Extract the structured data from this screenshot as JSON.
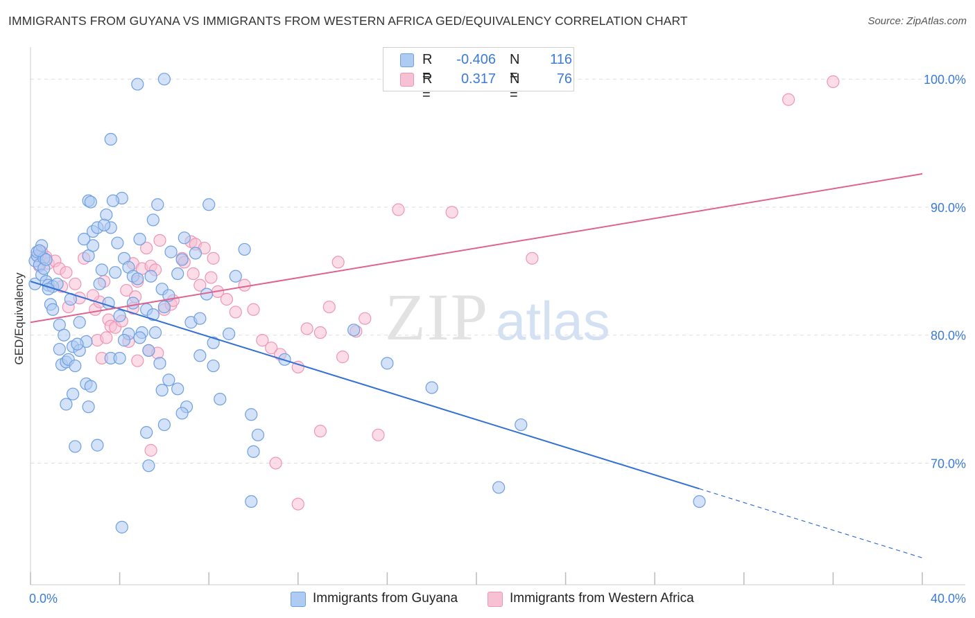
{
  "title": "IMMIGRANTS FROM GUYANA VS IMMIGRANTS FROM WESTERN AFRICA GED/EQUIVALENCY CORRELATION CHART",
  "source": "Source: ZipAtlas.com",
  "watermark": {
    "zip": "ZIP",
    "atlas": "atlas"
  },
  "colors": {
    "blue_fill": "#aecbf3",
    "blue_stroke": "#6e9fe0",
    "blue_line": "#3370d4",
    "pink_fill": "#f7c0d3",
    "pink_stroke": "#ee95b5",
    "pink_line": "#e0628f",
    "tick_label": "#3b7ad6",
    "grid": "#dddddd"
  },
  "legend": {
    "rows": [
      {
        "r_label": "R =",
        "r_value": "-0.406",
        "n_label": "N =",
        "n_value": "116",
        "color": "#aecbf3"
      },
      {
        "r_label": "R =",
        "r_value": "0.317",
        "n_label": "N =",
        "n_value": "76",
        "color": "#f7c0d3"
      }
    ]
  },
  "bottom_legend": [
    {
      "label": "Immigrants from Guyana",
      "color": "#aecbf3"
    },
    {
      "label": "Immigrants from Western Africa",
      "color": "#f7c0d3"
    }
  ],
  "chart_data": {
    "type": "scatter",
    "title": "IMMIGRANTS FROM GUYANA VS IMMIGRANTS FROM WESTERN AFRICA GED/EQUIVALENCY CORRELATION CHART",
    "xlabel": "",
    "ylabel": "GED/Equivalency",
    "xlim": [
      0,
      40
    ],
    "ylim": [
      60.5,
      102.5
    ],
    "x_tick_labels": [
      "0.0%",
      "40.0%"
    ],
    "y_ticks": [
      70,
      80,
      90,
      100
    ],
    "y_tick_labels": [
      "70.0%",
      "80.0%",
      "90.0%",
      "100.0%"
    ],
    "grid": "horizontal dashed",
    "legend_position": "top-center",
    "series": [
      {
        "name": "Immigrants from Guyana",
        "trend": {
          "x": [
            0,
            30
          ],
          "y": [
            84.2,
            68.0
          ],
          "dashed_extension_to": [
            40,
            62.6
          ]
        },
        "points": [
          [
            0.2,
            85.8
          ],
          [
            0.3,
            86.2
          ],
          [
            0.2,
            84.0
          ],
          [
            0.4,
            85.5
          ],
          [
            0.5,
            84.7
          ],
          [
            0.3,
            86.5
          ],
          [
            0.5,
            87.0
          ],
          [
            0.6,
            86.0
          ],
          [
            0.7,
            84.2
          ],
          [
            0.8,
            83.9
          ],
          [
            0.9,
            82.4
          ],
          [
            0.6,
            85.2
          ],
          [
            0.4,
            86.6
          ],
          [
            0.7,
            85.9
          ],
          [
            1.0,
            83.8
          ],
          [
            1.2,
            84.0
          ],
          [
            1.0,
            82.0
          ],
          [
            1.3,
            80.8
          ],
          [
            1.5,
            80.0
          ],
          [
            1.8,
            82.8
          ],
          [
            2.2,
            81.0
          ],
          [
            2.5,
            79.5
          ],
          [
            1.3,
            78.9
          ],
          [
            1.4,
            77.7
          ],
          [
            1.6,
            77.9
          ],
          [
            1.7,
            78.1
          ],
          [
            2.0,
            77.6
          ],
          [
            1.9,
            79.1
          ],
          [
            2.2,
            78.8
          ],
          [
            2.1,
            79.3
          ],
          [
            2.5,
            76.2
          ],
          [
            2.7,
            76.0
          ],
          [
            1.6,
            74.6
          ],
          [
            1.9,
            75.4
          ],
          [
            2.6,
            74.4
          ],
          [
            2.0,
            71.3
          ],
          [
            3.0,
            71.4
          ],
          [
            4.1,
            65.0
          ],
          [
            3.5,
            82.5
          ],
          [
            4.0,
            81.5
          ],
          [
            4.4,
            80.1
          ],
          [
            4.2,
            79.6
          ],
          [
            3.6,
            78.2
          ],
          [
            4.0,
            78.2
          ],
          [
            3.1,
            84.0
          ],
          [
            3.2,
            85.1
          ],
          [
            3.8,
            84.9
          ],
          [
            2.6,
            86.2
          ],
          [
            2.8,
            87.0
          ],
          [
            2.4,
            87.5
          ],
          [
            2.8,
            88.1
          ],
          [
            3.0,
            88.4
          ],
          [
            2.6,
            90.5
          ],
          [
            2.7,
            90.4
          ],
          [
            3.4,
            89.4
          ],
          [
            3.6,
            88.4
          ],
          [
            3.9,
            87.2
          ],
          [
            4.2,
            86.0
          ],
          [
            4.4,
            85.3
          ],
          [
            4.6,
            84.6
          ],
          [
            4.8,
            84.4
          ],
          [
            4.6,
            82.5
          ],
          [
            5.2,
            82.0
          ],
          [
            5.5,
            81.6
          ],
          [
            5.0,
            80.2
          ],
          [
            4.9,
            79.8
          ],
          [
            5.3,
            78.8
          ],
          [
            4.1,
            90.7
          ],
          [
            3.7,
            90.5
          ],
          [
            3.3,
            88.6
          ],
          [
            5.5,
            89.0
          ],
          [
            4.9,
            87.5
          ],
          [
            3.6,
            95.3
          ],
          [
            4.8,
            99.6
          ],
          [
            5.4,
            84.6
          ],
          [
            5.9,
            83.6
          ],
          [
            6.0,
            82.2
          ],
          [
            6.2,
            83.1
          ],
          [
            6.6,
            84.8
          ],
          [
            6.3,
            86.5
          ],
          [
            6.8,
            85.9
          ],
          [
            6.9,
            87.6
          ],
          [
            5.7,
            90.2
          ],
          [
            5.6,
            80.2
          ],
          [
            5.8,
            77.8
          ],
          [
            6.2,
            76.5
          ],
          [
            6.6,
            75.8
          ],
          [
            5.9,
            75.7
          ],
          [
            7.0,
            74.4
          ],
          [
            6.8,
            73.9
          ],
          [
            6.0,
            73.0
          ],
          [
            5.2,
            72.4
          ],
          [
            5.3,
            69.8
          ],
          [
            7.2,
            81.0
          ],
          [
            7.6,
            78.4
          ],
          [
            7.6,
            81.3
          ],
          [
            8.2,
            79.4
          ],
          [
            8.2,
            77.6
          ],
          [
            8.9,
            80.1
          ],
          [
            8.5,
            75.0
          ],
          [
            8.0,
            90.2
          ],
          [
            7.4,
            86.4
          ],
          [
            7.9,
            83.2
          ],
          [
            9.2,
            84.6
          ],
          [
            9.6,
            86.7
          ],
          [
            9.9,
            73.8
          ],
          [
            10.2,
            72.2
          ],
          [
            10.0,
            70.9
          ],
          [
            9.9,
            67.0
          ],
          [
            6.0,
            100.0
          ],
          [
            11.4,
            78.1
          ],
          [
            14.5,
            80.4
          ],
          [
            16.0,
            77.8
          ],
          [
            18.0,
            75.9
          ],
          [
            22.0,
            73.0
          ],
          [
            21.0,
            68.1
          ],
          [
            30.0,
            67.0
          ],
          [
            0.8,
            83.6
          ]
        ]
      },
      {
        "name": "Immigrants from Western Africa",
        "trend": {
          "x": [
            0,
            40
          ],
          "y": [
            81.0,
            92.6
          ]
        },
        "points": [
          [
            0.3,
            86.2
          ],
          [
            0.4,
            85.4
          ],
          [
            0.5,
            86.5
          ],
          [
            0.7,
            86.1
          ],
          [
            0.8,
            85.6
          ],
          [
            1.1,
            85.8
          ],
          [
            1.3,
            85.2
          ],
          [
            1.6,
            84.9
          ],
          [
            1.4,
            83.8
          ],
          [
            1.7,
            82.2
          ],
          [
            2.0,
            84.0
          ],
          [
            2.4,
            86.0
          ],
          [
            2.2,
            82.9
          ],
          [
            2.9,
            82.0
          ],
          [
            3.1,
            82.6
          ],
          [
            2.8,
            83.1
          ],
          [
            3.3,
            84.2
          ],
          [
            3.5,
            81.2
          ],
          [
            3.6,
            80.7
          ],
          [
            3.0,
            79.6
          ],
          [
            3.4,
            79.8
          ],
          [
            3.8,
            80.6
          ],
          [
            3.2,
            78.2
          ],
          [
            4.4,
            79.5
          ],
          [
            4.1,
            81.1
          ],
          [
            4.6,
            82.1
          ],
          [
            4.3,
            83.5
          ],
          [
            4.7,
            83.0
          ],
          [
            4.8,
            84.2
          ],
          [
            4.6,
            85.6
          ],
          [
            5.0,
            85.2
          ],
          [
            5.2,
            86.8
          ],
          [
            5.4,
            85.4
          ],
          [
            5.6,
            85.1
          ],
          [
            5.8,
            87.4
          ],
          [
            5.3,
            78.8
          ],
          [
            4.8,
            78.0
          ],
          [
            5.7,
            78.6
          ],
          [
            6.0,
            82.0
          ],
          [
            6.3,
            82.4
          ],
          [
            6.4,
            82.7
          ],
          [
            6.8,
            86.0
          ],
          [
            6.9,
            85.7
          ],
          [
            7.2,
            87.3
          ],
          [
            7.4,
            87.1
          ],
          [
            7.8,
            86.8
          ],
          [
            8.2,
            86.0
          ],
          [
            7.3,
            84.8
          ],
          [
            7.6,
            83.9
          ],
          [
            8.1,
            84.5
          ],
          [
            8.4,
            83.4
          ],
          [
            8.8,
            82.8
          ],
          [
            9.2,
            81.8
          ],
          [
            9.6,
            83.9
          ],
          [
            10.0,
            82.0
          ],
          [
            10.4,
            79.6
          ],
          [
            10.8,
            79.0
          ],
          [
            11.2,
            78.5
          ],
          [
            12.0,
            77.5
          ],
          [
            12.4,
            80.5
          ],
          [
            13.0,
            80.2
          ],
          [
            13.4,
            82.2
          ],
          [
            14.0,
            78.3
          ],
          [
            14.6,
            80.3
          ],
          [
            15.0,
            81.3
          ],
          [
            13.8,
            85.7
          ],
          [
            16.5,
            89.8
          ],
          [
            18.9,
            89.6
          ],
          [
            22.5,
            86.0
          ],
          [
            13.0,
            72.5
          ],
          [
            15.6,
            72.2
          ],
          [
            11.0,
            70.0
          ],
          [
            12.0,
            66.8
          ],
          [
            5.4,
            71.0
          ],
          [
            34.0,
            98.4
          ],
          [
            36.0,
            99.8
          ]
        ]
      }
    ]
  }
}
